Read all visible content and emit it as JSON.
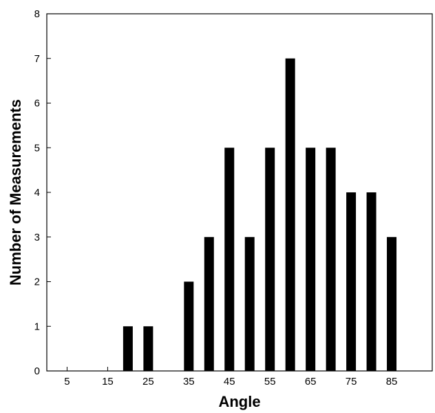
{
  "chart_data": {
    "type": "bar",
    "title": "",
    "xlabel": "Angle",
    "ylabel": "Number of Measurements",
    "x": [
      20,
      25,
      35,
      40,
      45,
      50,
      55,
      60,
      65,
      70,
      75,
      80,
      85
    ],
    "values": [
      1,
      1,
      2,
      3,
      5,
      3,
      5,
      7,
      5,
      5,
      4,
      4,
      3
    ],
    "xlim": [
      0,
      95
    ],
    "ylim": [
      0,
      8
    ],
    "x_ticks": [
      5,
      15,
      25,
      35,
      45,
      55,
      65,
      75,
      85
    ],
    "x_tick_labels": [
      "5",
      "15",
      "25",
      "35",
      "45",
      "55",
      "65",
      "75",
      "85"
    ],
    "y_ticks": [
      0,
      1,
      2,
      3,
      4,
      5,
      6,
      7,
      8
    ],
    "y_tick_labels": [
      "0",
      "1",
      "2",
      "3",
      "4",
      "5",
      "6",
      "7",
      "8"
    ],
    "bar_color": "#000000",
    "grid": false,
    "legend": "none"
  }
}
